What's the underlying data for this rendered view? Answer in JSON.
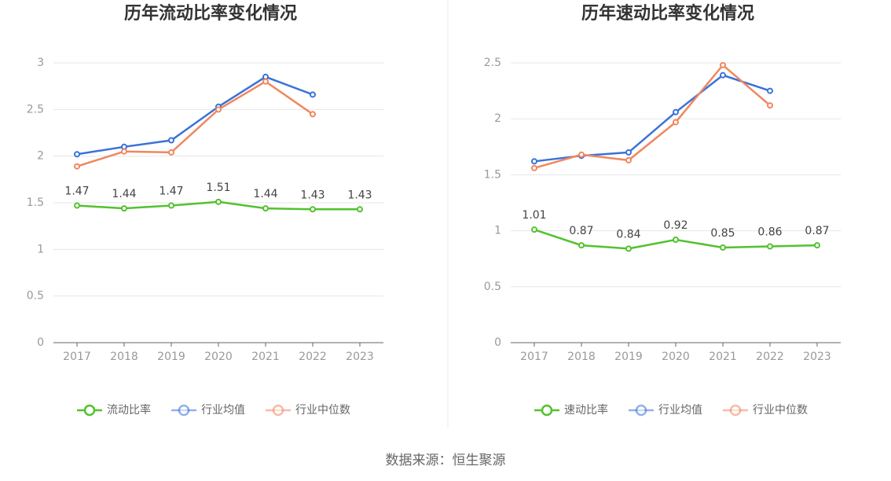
{
  "chart_data": [
    {
      "type": "line",
      "title": "历年流动比率变化情况",
      "categories": [
        "2017",
        "2018",
        "2019",
        "2020",
        "2021",
        "2022",
        "2023"
      ],
      "series": [
        {
          "name": "流动比率",
          "color": "#52c22e",
          "values": [
            1.47,
            1.44,
            1.47,
            1.51,
            1.44,
            1.43,
            1.43
          ],
          "show_labels": true
        },
        {
          "name": "行业均值",
          "color": "#3a72d8",
          "values": [
            2.02,
            2.1,
            2.17,
            2.53,
            2.85,
            2.66,
            null
          ],
          "show_labels": false
        },
        {
          "name": "行业中位数",
          "color": "#f0875e",
          "values": [
            1.89,
            2.05,
            2.04,
            2.5,
            2.8,
            2.45,
            null
          ],
          "show_labels": false
        }
      ],
      "ylim": [
        0,
        3
      ],
      "yticks": [
        0,
        0.5,
        1,
        1.5,
        2,
        2.5,
        3
      ],
      "grid": true,
      "legend": "bottom"
    },
    {
      "type": "line",
      "title": "历年速动比率变化情况",
      "categories": [
        "2017",
        "2018",
        "2019",
        "2020",
        "2021",
        "2022",
        "2023"
      ],
      "series": [
        {
          "name": "速动比率",
          "color": "#52c22e",
          "values": [
            1.01,
            0.87,
            0.84,
            0.92,
            0.85,
            0.86,
            0.87
          ],
          "show_labels": true
        },
        {
          "name": "行业均值",
          "color": "#3a72d8",
          "values": [
            1.62,
            1.67,
            1.7,
            2.06,
            2.39,
            2.25,
            null
          ],
          "show_labels": false
        },
        {
          "name": "行业中位数",
          "color": "#f0875e",
          "values": [
            1.56,
            1.68,
            1.63,
            1.97,
            2.48,
            2.12,
            null
          ],
          "show_labels": false
        }
      ],
      "ylim": [
        0,
        2.5
      ],
      "yticks": [
        0,
        0.5,
        1,
        1.5,
        2,
        2.5
      ],
      "grid": true,
      "legend": "bottom"
    }
  ],
  "source": "数据来源：恒生聚源"
}
